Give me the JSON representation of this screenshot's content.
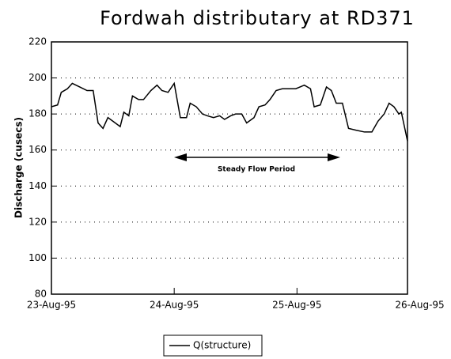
{
  "chart_data": {
    "type": "line",
    "title": "Fordwah distributary at RD371",
    "y_label": "Discharge (cusecs)",
    "annotation": "Steady Flow Period",
    "xlim": [
      0,
      2.9
    ],
    "xticks": [
      {
        "value": 0,
        "label": "23-Aug-95"
      },
      {
        "value": 1,
        "label": "24-Aug-95"
      },
      {
        "value": 2,
        "label": "25-Aug-95"
      },
      {
        "value": 3,
        "label": "26-Aug-95"
      }
    ],
    "ylim": [
      80,
      220
    ],
    "yticks": [
      80,
      100,
      120,
      140,
      160,
      180,
      200,
      220
    ],
    "grid": true,
    "legend": "bottom",
    "x": [
      0,
      0.05,
      0.08,
      0.13,
      0.17,
      0.23,
      0.29,
      0.34,
      0.38,
      0.42,
      0.46,
      0.52,
      0.56,
      0.59,
      0.63,
      0.66,
      0.71,
      0.75,
      0.81,
      0.86,
      0.9,
      0.95,
      1.0,
      1.05,
      1.1,
      1.13,
      1.18,
      1.23,
      1.27,
      1.32,
      1.37,
      1.41,
      1.46,
      1.5,
      1.55,
      1.59,
      1.65,
      1.69,
      1.74,
      1.78,
      1.83,
      1.88,
      1.94,
      1.99,
      2.06,
      2.11,
      2.14,
      2.19,
      2.24,
      2.28,
      2.32,
      2.37,
      2.42,
      2.48,
      2.55,
      2.61,
      2.66,
      2.71,
      2.75,
      2.79,
      2.83,
      2.85,
      2.9
    ],
    "series": [
      {
        "name": "Q(structure)",
        "color": "#000000",
        "values": [
          184,
          185,
          192,
          194,
          197,
          195,
          193,
          193,
          175,
          172,
          178,
          175,
          173,
          181,
          179,
          190,
          188,
          188,
          193,
          196,
          193,
          192,
          197,
          178,
          178,
          186,
          184,
          180,
          179,
          178,
          179,
          177,
          179,
          180,
          180,
          175,
          178,
          184,
          185,
          188,
          193,
          194,
          194,
          194,
          196,
          194,
          184,
          185,
          195,
          193,
          186,
          186,
          172,
          171,
          170,
          170,
          176,
          180,
          186,
          184,
          180,
          181,
          165
        ]
      }
    ]
  }
}
